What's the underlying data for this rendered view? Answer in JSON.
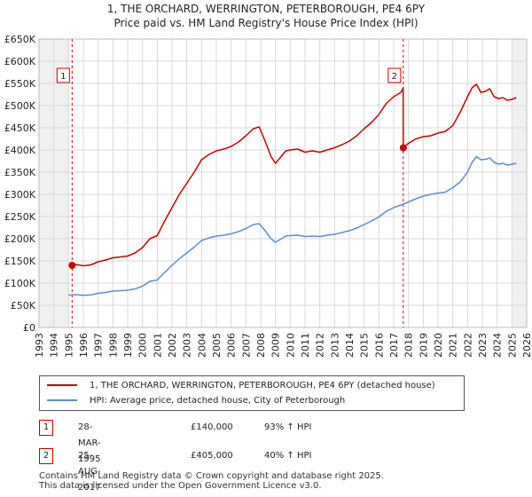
{
  "chart_data": {
    "type": "line",
    "title": "1, THE ORCHARD, WERRINGTON, PETERBOROUGH, PE4 6PY",
    "subtitle": "Price paid vs. HM Land Registry's House Price Index (HPI)",
    "xlabel": "",
    "ylabel": "",
    "xlim": [
      1993,
      2026
    ],
    "ylim": [
      0,
      650000
    ],
    "grid": true,
    "x_ticks": [
      "1993",
      "1994",
      "1995",
      "1996",
      "1997",
      "1998",
      "1999",
      "2000",
      "2001",
      "2002",
      "2003",
      "2004",
      "2005",
      "2006",
      "2007",
      "2008",
      "2009",
      "2010",
      "2011",
      "2012",
      "2013",
      "2014",
      "2015",
      "2016",
      "2017",
      "2018",
      "2019",
      "2020",
      "2021",
      "2022",
      "2023",
      "2024",
      "2025",
      "2026"
    ],
    "y_ticks": [
      "£0",
      "£50K",
      "£100K",
      "£150K",
      "£200K",
      "£250K",
      "£300K",
      "£350K",
      "£400K",
      "£450K",
      "£500K",
      "£550K",
      "£600K",
      "£650K"
    ],
    "y_tick_values": [
      0,
      50000,
      100000,
      150000,
      200000,
      250000,
      300000,
      350000,
      400000,
      450000,
      500000,
      550000,
      600000,
      650000
    ],
    "series": [
      {
        "name": "1, THE ORCHARD, WERRINGTON, PETERBOROUGH, PE4 6PY (detached house)",
        "color": "#cc0000",
        "x": [
          1995.24,
          1995.5,
          1996,
          1996.5,
          1997,
          1997.5,
          1998,
          1998.5,
          1999,
          1999.5,
          2000,
          2000.5,
          2001,
          2001.5,
          2002,
          2002.5,
          2003,
          2003.5,
          2004,
          2004.5,
          2005,
          2005.5,
          2006,
          2006.5,
          2007,
          2007.5,
          2007.9,
          2008.3,
          2008.7,
          2009.0,
          2009.3,
          2009.7,
          2010,
          2010.5,
          2011,
          2011.5,
          2012,
          2012.5,
          2013,
          2013.5,
          2014,
          2014.5,
          2015,
          2015.5,
          2016,
          2016.5,
          2017.0,
          2017.5,
          2017.64,
          2017.65,
          2018,
          2018.5,
          2019,
          2019.5,
          2020,
          2020.5,
          2021,
          2021.5,
          2022,
          2022.3,
          2022.6,
          2022.9,
          2023.2,
          2023.5,
          2023.8,
          2024.1,
          2024.4,
          2024.7,
          2025.0,
          2025.3
        ],
        "values": [
          140000,
          142000,
          139000,
          141000,
          148000,
          152000,
          157000,
          159000,
          161000,
          168000,
          180000,
          200000,
          207000,
          240000,
          270000,
          300000,
          325000,
          350000,
          378000,
          390000,
          398000,
          402000,
          408000,
          418000,
          432000,
          448000,
          452000,
          420000,
          385000,
          370000,
          382000,
          398000,
          400000,
          402000,
          395000,
          398000,
          395000,
          400000,
          405000,
          412000,
          420000,
          432000,
          448000,
          462000,
          480000,
          505000,
          520000,
          530000,
          540000,
          405000,
          415000,
          425000,
          430000,
          432000,
          438000,
          442000,
          455000,
          485000,
          520000,
          540000,
          548000,
          530000,
          532000,
          538000,
          520000,
          516000,
          518000,
          512000,
          514000,
          518000
        ]
      },
      {
        "name": "HPI: Average price, detached house, City of Peterborough",
        "color": "#5b8ec9",
        "x": [
          1995.0,
          1995.5,
          1996,
          1996.5,
          1997,
          1997.5,
          1998,
          1998.5,
          1999,
          1999.5,
          2000,
          2000.5,
          2001,
          2001.5,
          2002,
          2002.5,
          2003,
          2003.5,
          2004,
          2004.5,
          2005,
          2005.5,
          2006,
          2006.5,
          2007,
          2007.5,
          2007.9,
          2008.3,
          2008.7,
          2009.0,
          2009.3,
          2009.7,
          2010,
          2010.5,
          2011,
          2011.5,
          2012,
          2012.5,
          2013,
          2013.5,
          2014,
          2014.5,
          2015,
          2015.5,
          2016,
          2016.5,
          2017,
          2017.5,
          2018,
          2018.5,
          2019,
          2019.5,
          2020,
          2020.5,
          2021,
          2021.5,
          2022,
          2022.3,
          2022.6,
          2022.9,
          2023.2,
          2023.5,
          2023.8,
          2024.1,
          2024.4,
          2024.7,
          2025.0,
          2025.3
        ],
        "values": [
          73000,
          74000,
          72500,
          73500,
          77000,
          79000,
          82000,
          83000,
          84000,
          87000,
          93000,
          104000,
          107000,
          124000,
          140000,
          155000,
          168000,
          181000,
          196000,
          202000,
          206000,
          208000,
          211000,
          216000,
          223000,
          232000,
          234000,
          218000,
          200000,
          192000,
          198000,
          206000,
          207000,
          208000,
          205000,
          206000,
          205000,
          208000,
          210000,
          214000,
          218000,
          224000,
          232000,
          240000,
          249000,
          262000,
          270000,
          276000,
          283000,
          290000,
          296000,
          300000,
          303000,
          305000,
          315000,
          328000,
          350000,
          372000,
          385000,
          378000,
          379000,
          382000,
          372000,
          368000,
          370000,
          366000,
          368000,
          370000
        ]
      }
    ],
    "transactions": [
      {
        "marker": "1",
        "x": 1995.24,
        "value": 140000
      },
      {
        "marker": "2",
        "x": 2017.65,
        "value": 405000
      }
    ],
    "shaded_regions": [
      {
        "from": 1993,
        "to": 1995.0
      },
      {
        "from": 2025.0,
        "to": 2026
      }
    ]
  },
  "legend": {
    "property_label": "1, THE ORCHARD, WERRINGTON, PETERBOROUGH, PE4 6PY (detached house)",
    "hpi_label": "HPI: Average price, detached house, City of Peterborough"
  },
  "transactions_table": [
    {
      "marker": "1",
      "date": "28-MAR-1995",
      "price": "£140,000",
      "hpi": "93% ↑ HPI"
    },
    {
      "marker": "2",
      "date": "25-AUG-2017",
      "price": "£405,000",
      "hpi": "40% ↑ HPI"
    }
  ],
  "footer": {
    "line1": "Contains HM Land Registry data © Crown copyright and database right 2025.",
    "line2": "This data is licensed under the Open Government Licence v3.0."
  }
}
